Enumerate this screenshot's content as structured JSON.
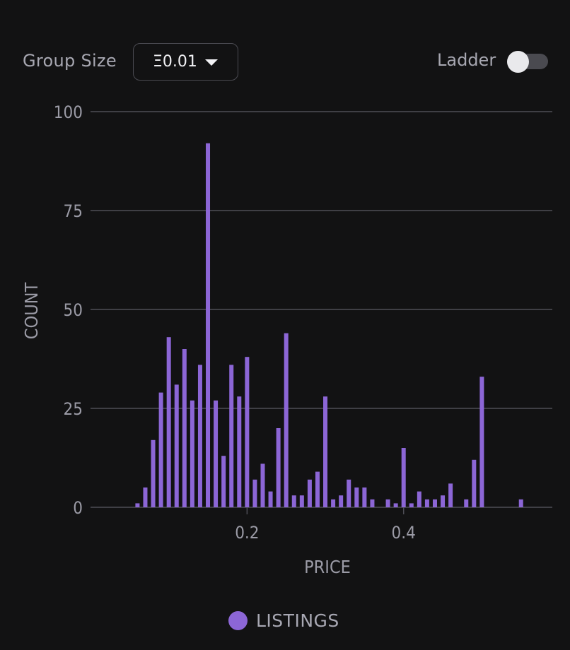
{
  "controls": {
    "group_size_label": "Group Size",
    "group_size_value": "Ξ0.01",
    "ladder_label": "Ladder",
    "ladder_on": false
  },
  "colors": {
    "background": "#121213",
    "bar": "#8c66d6",
    "grid": "#4e4e56",
    "text": "#9b9ba6"
  },
  "chart_data": {
    "type": "bar",
    "xlabel": "PRICE",
    "ylabel": "COUNT",
    "ylim": [
      0,
      100
    ],
    "yticks": [
      0,
      25,
      50,
      75,
      100
    ],
    "xticks": [
      0.2,
      0.4
    ],
    "xlim": [
      0,
      0.59
    ],
    "grid": true,
    "legend_position": "bottom",
    "series": [
      {
        "name": "LISTINGS",
        "x": [
          0.06,
          0.07,
          0.08,
          0.09,
          0.1,
          0.11,
          0.12,
          0.13,
          0.14,
          0.15,
          0.16,
          0.17,
          0.18,
          0.19,
          0.2,
          0.21,
          0.22,
          0.23,
          0.24,
          0.25,
          0.26,
          0.27,
          0.28,
          0.29,
          0.3,
          0.31,
          0.32,
          0.33,
          0.34,
          0.35,
          0.36,
          0.38,
          0.39,
          0.4,
          0.41,
          0.42,
          0.43,
          0.44,
          0.45,
          0.46,
          0.48,
          0.49,
          0.5,
          0.55
        ],
        "values": [
          1,
          5,
          17,
          29,
          43,
          31,
          40,
          27,
          36,
          92,
          27,
          13,
          36,
          28,
          38,
          7,
          11,
          4,
          20,
          44,
          3,
          3,
          7,
          9,
          28,
          2,
          3,
          7,
          5,
          5,
          2,
          2,
          1,
          15,
          1,
          4,
          2,
          2,
          3,
          6,
          2,
          12,
          33,
          2
        ]
      }
    ]
  }
}
